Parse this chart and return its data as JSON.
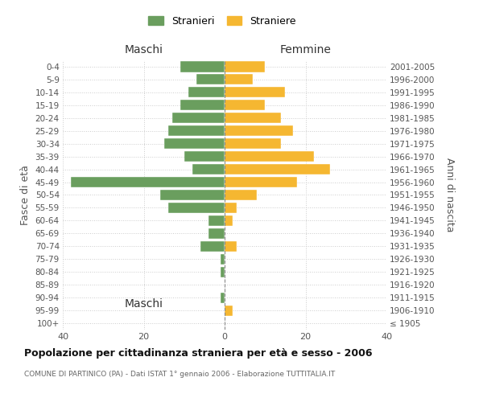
{
  "age_groups": [
    "100+",
    "95-99",
    "90-94",
    "85-89",
    "80-84",
    "75-79",
    "70-74",
    "65-69",
    "60-64",
    "55-59",
    "50-54",
    "45-49",
    "40-44",
    "35-39",
    "30-34",
    "25-29",
    "20-24",
    "15-19",
    "10-14",
    "5-9",
    "0-4"
  ],
  "birth_years": [
    "≤ 1905",
    "1906-1910",
    "1911-1915",
    "1916-1920",
    "1921-1925",
    "1926-1930",
    "1931-1935",
    "1936-1940",
    "1941-1945",
    "1946-1950",
    "1951-1955",
    "1956-1960",
    "1961-1965",
    "1966-1970",
    "1971-1975",
    "1976-1980",
    "1981-1985",
    "1986-1990",
    "1991-1995",
    "1996-2000",
    "2001-2005"
  ],
  "maschi": [
    0,
    0,
    1,
    0,
    1,
    1,
    6,
    4,
    4,
    14,
    16,
    38,
    8,
    10,
    15,
    14,
    13,
    11,
    9,
    7,
    11
  ],
  "femmine": [
    0,
    2,
    0,
    0,
    0,
    0,
    3,
    0,
    2,
    3,
    8,
    18,
    26,
    22,
    14,
    17,
    14,
    10,
    15,
    7,
    10
  ],
  "color_maschi": "#6a9e5e",
  "color_femmine": "#f5b731",
  "title": "Popolazione per cittadinanza straniera per età e sesso - 2006",
  "subtitle": "COMUNE DI PARTINICO (PA) - Dati ISTAT 1° gennaio 2006 - Elaborazione TUTTITALIA.IT",
  "xlabel_left": "Maschi",
  "xlabel_right": "Femmine",
  "ylabel_left": "Fasce di età",
  "ylabel_right": "Anni di nascita",
  "xlim": 40,
  "bg_color": "#ffffff",
  "grid_color": "#cccccc",
  "legend_maschi": "Stranieri",
  "legend_femmine": "Straniere"
}
